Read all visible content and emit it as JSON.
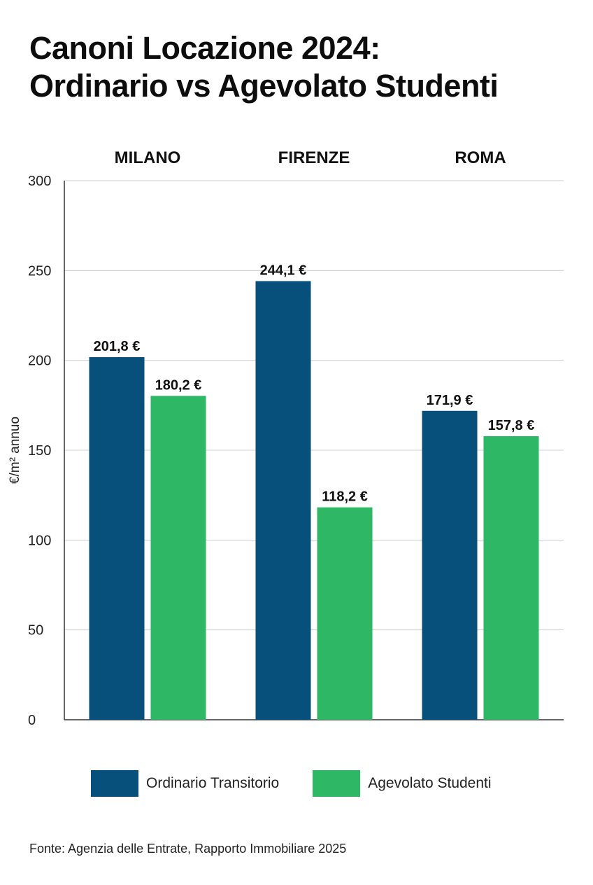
{
  "header": {
    "title_line1": "Canoni Locazione 2024:",
    "title_line2": "Ordinario vs Agevolato Studenti"
  },
  "footer": {
    "source": "Fonte: Agenzia delle Entrate, Rapporto Immobiliare 2025"
  },
  "chart_data": {
    "type": "bar",
    "title": "Canoni Locazione 2024: Ordinario vs Agevolato Studenti",
    "categories": [
      "MILANO",
      "FIRENZE",
      "ROMA"
    ],
    "series": [
      {
        "name": "Ordinario Transitorio",
        "color": "#07507c",
        "values": [
          201.8,
          244.1,
          171.9
        ],
        "labels": [
          "201,8 €",
          "244,1 €",
          "171,9 €"
        ]
      },
      {
        "name": "Agevolato Studenti",
        "color": "#2eb866",
        "values": [
          180.2,
          118.2,
          157.8
        ],
        "labels": [
          "180,2 €",
          "118,2 €",
          "157,8 €"
        ]
      }
    ],
    "ylabel": "€/m² annuo",
    "xlabel": "",
    "ylim": [
      0,
      300
    ],
    "yticks": [
      0,
      50,
      100,
      150,
      200,
      250,
      300
    ],
    "grid": true,
    "legend_position": "bottom",
    "category_label_position": "top"
  }
}
